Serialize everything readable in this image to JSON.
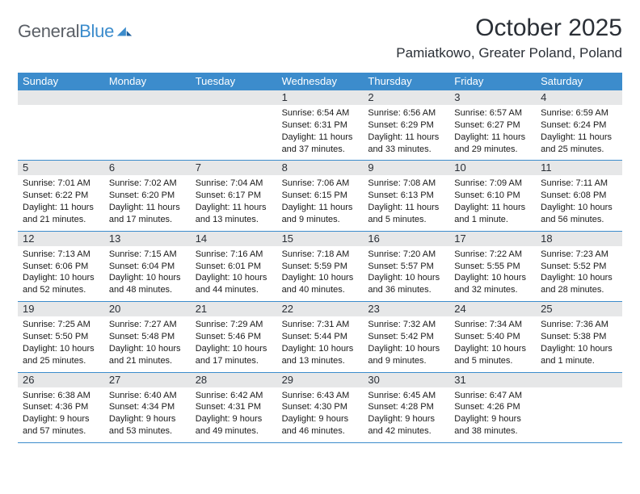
{
  "branding": {
    "name_part1": "General",
    "name_part2": "Blue",
    "name_color_grey": "#5a5f66",
    "name_color_blue": "#3c8ccc"
  },
  "title": {
    "month_year": "October 2025",
    "location": "Pamiatkowo, Greater Poland, Poland"
  },
  "styling": {
    "header_bg": "#3c8ccc",
    "daynum_band_bg": "#e6e7e8",
    "week_border_color": "#3c8ccc",
    "page_bg": "#ffffff",
    "text_color": "#1a1a1a",
    "dow_fontsize": 13,
    "cell_fontsize": 11,
    "title_fontsize": 30,
    "location_fontsize": 17
  },
  "days_of_week": [
    "Sunday",
    "Monday",
    "Tuesday",
    "Wednesday",
    "Thursday",
    "Friday",
    "Saturday"
  ],
  "weeks": [
    [
      {
        "n": "",
        "sunrise": "",
        "sunset": "",
        "daylight": ""
      },
      {
        "n": "",
        "sunrise": "",
        "sunset": "",
        "daylight": ""
      },
      {
        "n": "",
        "sunrise": "",
        "sunset": "",
        "daylight": ""
      },
      {
        "n": "1",
        "sunrise": "Sunrise: 6:54 AM",
        "sunset": "Sunset: 6:31 PM",
        "daylight": "Daylight: 11 hours and 37 minutes."
      },
      {
        "n": "2",
        "sunrise": "Sunrise: 6:56 AM",
        "sunset": "Sunset: 6:29 PM",
        "daylight": "Daylight: 11 hours and 33 minutes."
      },
      {
        "n": "3",
        "sunrise": "Sunrise: 6:57 AM",
        "sunset": "Sunset: 6:27 PM",
        "daylight": "Daylight: 11 hours and 29 minutes."
      },
      {
        "n": "4",
        "sunrise": "Sunrise: 6:59 AM",
        "sunset": "Sunset: 6:24 PM",
        "daylight": "Daylight: 11 hours and 25 minutes."
      }
    ],
    [
      {
        "n": "5",
        "sunrise": "Sunrise: 7:01 AM",
        "sunset": "Sunset: 6:22 PM",
        "daylight": "Daylight: 11 hours and 21 minutes."
      },
      {
        "n": "6",
        "sunrise": "Sunrise: 7:02 AM",
        "sunset": "Sunset: 6:20 PM",
        "daylight": "Daylight: 11 hours and 17 minutes."
      },
      {
        "n": "7",
        "sunrise": "Sunrise: 7:04 AM",
        "sunset": "Sunset: 6:17 PM",
        "daylight": "Daylight: 11 hours and 13 minutes."
      },
      {
        "n": "8",
        "sunrise": "Sunrise: 7:06 AM",
        "sunset": "Sunset: 6:15 PM",
        "daylight": "Daylight: 11 hours and 9 minutes."
      },
      {
        "n": "9",
        "sunrise": "Sunrise: 7:08 AM",
        "sunset": "Sunset: 6:13 PM",
        "daylight": "Daylight: 11 hours and 5 minutes."
      },
      {
        "n": "10",
        "sunrise": "Sunrise: 7:09 AM",
        "sunset": "Sunset: 6:10 PM",
        "daylight": "Daylight: 11 hours and 1 minute."
      },
      {
        "n": "11",
        "sunrise": "Sunrise: 7:11 AM",
        "sunset": "Sunset: 6:08 PM",
        "daylight": "Daylight: 10 hours and 56 minutes."
      }
    ],
    [
      {
        "n": "12",
        "sunrise": "Sunrise: 7:13 AM",
        "sunset": "Sunset: 6:06 PM",
        "daylight": "Daylight: 10 hours and 52 minutes."
      },
      {
        "n": "13",
        "sunrise": "Sunrise: 7:15 AM",
        "sunset": "Sunset: 6:04 PM",
        "daylight": "Daylight: 10 hours and 48 minutes."
      },
      {
        "n": "14",
        "sunrise": "Sunrise: 7:16 AM",
        "sunset": "Sunset: 6:01 PM",
        "daylight": "Daylight: 10 hours and 44 minutes."
      },
      {
        "n": "15",
        "sunrise": "Sunrise: 7:18 AM",
        "sunset": "Sunset: 5:59 PM",
        "daylight": "Daylight: 10 hours and 40 minutes."
      },
      {
        "n": "16",
        "sunrise": "Sunrise: 7:20 AM",
        "sunset": "Sunset: 5:57 PM",
        "daylight": "Daylight: 10 hours and 36 minutes."
      },
      {
        "n": "17",
        "sunrise": "Sunrise: 7:22 AM",
        "sunset": "Sunset: 5:55 PM",
        "daylight": "Daylight: 10 hours and 32 minutes."
      },
      {
        "n": "18",
        "sunrise": "Sunrise: 7:23 AM",
        "sunset": "Sunset: 5:52 PM",
        "daylight": "Daylight: 10 hours and 28 minutes."
      }
    ],
    [
      {
        "n": "19",
        "sunrise": "Sunrise: 7:25 AM",
        "sunset": "Sunset: 5:50 PM",
        "daylight": "Daylight: 10 hours and 25 minutes."
      },
      {
        "n": "20",
        "sunrise": "Sunrise: 7:27 AM",
        "sunset": "Sunset: 5:48 PM",
        "daylight": "Daylight: 10 hours and 21 minutes."
      },
      {
        "n": "21",
        "sunrise": "Sunrise: 7:29 AM",
        "sunset": "Sunset: 5:46 PM",
        "daylight": "Daylight: 10 hours and 17 minutes."
      },
      {
        "n": "22",
        "sunrise": "Sunrise: 7:31 AM",
        "sunset": "Sunset: 5:44 PM",
        "daylight": "Daylight: 10 hours and 13 minutes."
      },
      {
        "n": "23",
        "sunrise": "Sunrise: 7:32 AM",
        "sunset": "Sunset: 5:42 PM",
        "daylight": "Daylight: 10 hours and 9 minutes."
      },
      {
        "n": "24",
        "sunrise": "Sunrise: 7:34 AM",
        "sunset": "Sunset: 5:40 PM",
        "daylight": "Daylight: 10 hours and 5 minutes."
      },
      {
        "n": "25",
        "sunrise": "Sunrise: 7:36 AM",
        "sunset": "Sunset: 5:38 PM",
        "daylight": "Daylight: 10 hours and 1 minute."
      }
    ],
    [
      {
        "n": "26",
        "sunrise": "Sunrise: 6:38 AM",
        "sunset": "Sunset: 4:36 PM",
        "daylight": "Daylight: 9 hours and 57 minutes."
      },
      {
        "n": "27",
        "sunrise": "Sunrise: 6:40 AM",
        "sunset": "Sunset: 4:34 PM",
        "daylight": "Daylight: 9 hours and 53 minutes."
      },
      {
        "n": "28",
        "sunrise": "Sunrise: 6:42 AM",
        "sunset": "Sunset: 4:31 PM",
        "daylight": "Daylight: 9 hours and 49 minutes."
      },
      {
        "n": "29",
        "sunrise": "Sunrise: 6:43 AM",
        "sunset": "Sunset: 4:30 PM",
        "daylight": "Daylight: 9 hours and 46 minutes."
      },
      {
        "n": "30",
        "sunrise": "Sunrise: 6:45 AM",
        "sunset": "Sunset: 4:28 PM",
        "daylight": "Daylight: 9 hours and 42 minutes."
      },
      {
        "n": "31",
        "sunrise": "Sunrise: 6:47 AM",
        "sunset": "Sunset: 4:26 PM",
        "daylight": "Daylight: 9 hours and 38 minutes."
      },
      {
        "n": "",
        "sunrise": "",
        "sunset": "",
        "daylight": ""
      }
    ]
  ]
}
